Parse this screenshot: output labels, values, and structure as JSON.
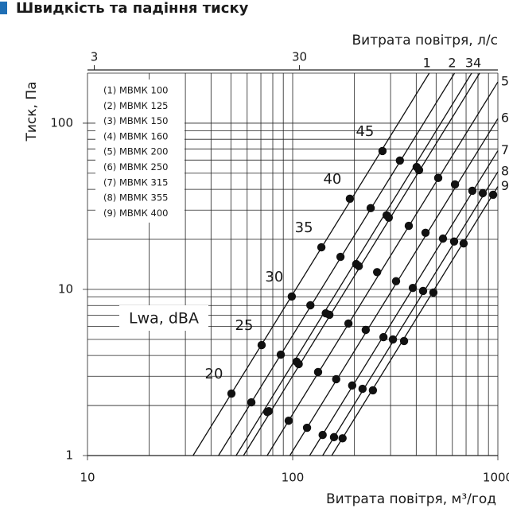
{
  "chart_data": {
    "type": "loglog-fan",
    "title": "Швидкість та падіння тиску",
    "x_label": "Витрата повітря, м³/год",
    "x2_label": "Витрата повітря, л/с",
    "y_label": "Тиск, Па",
    "annotation": "Lwa, dBA",
    "xlim": [
      10,
      1000
    ],
    "xticks": [
      10,
      100,
      1000
    ],
    "x_minor_ticks": [
      20,
      30,
      40,
      50,
      60,
      70,
      80,
      90,
      200,
      300,
      400,
      500,
      600,
      700,
      800,
      900
    ],
    "x2lim": [
      2.78,
      277.8
    ],
    "x2ticks": [
      3,
      30
    ],
    "ylim": [
      1,
      200
    ],
    "yticks": [
      1,
      10,
      100
    ],
    "y_minor_ticks": [
      2,
      3,
      4,
      5,
      6,
      7,
      8,
      9,
      20,
      30,
      40,
      50,
      60,
      70,
      80,
      90,
      200
    ],
    "log_scale": true,
    "grid": true,
    "dba_levels": [
      20,
      25,
      30,
      35,
      40,
      45
    ],
    "legend": [
      "(1) МВМК 100",
      "(2) МВМК 125",
      "(3) МВМК 150",
      "(4) МВМК 160",
      "(5) МВМК 200",
      "(6) МВМК 250",
      "(7) МВМК 315",
      "(8) МВМК 355",
      "(9) МВМК 400"
    ],
    "series": [
      {
        "name": "1",
        "color": "#111111",
        "line_x": [
          32.7,
          463
        ],
        "line_y": [
          1,
          200
        ],
        "x": [
          50.3,
          70.6,
          99,
          138,
          190,
          274
        ],
        "values": [
          2.36,
          4.62,
          9.06,
          17.9,
          35.1,
          68
        ]
      },
      {
        "name": "2",
        "color": "#111111",
        "line_x": [
          43.5,
          615
        ],
        "line_y": [
          1,
          200
        ],
        "x": [
          62.9,
          87.5,
          122,
          171,
          240,
          333
        ],
        "values": [
          2.09,
          4.05,
          8.02,
          15.7,
          30.8,
          59.6
        ]
      },
      {
        "name": "3",
        "color": "#111111",
        "line_x": [
          53,
          745
        ],
        "line_y": [
          1,
          200
        ],
        "x": [
          75.2,
          104.5,
          145,
          204,
          287,
          402
        ],
        "values": [
          1.83,
          3.67,
          7.18,
          14.2,
          27.9,
          54.5
        ]
      },
      {
        "name": "4",
        "color": "#111111",
        "line_x": [
          57.6,
          815
        ],
        "line_y": [
          1,
          200
        ],
        "x": [
          76.5,
          107,
          151,
          210,
          294,
          413
        ],
        "values": [
          1.85,
          3.55,
          7.03,
          13.8,
          27.0,
          52.2
        ]
      },
      {
        "name": "5",
        "color": "#111111",
        "line_x": [
          75.1,
          1000
        ],
        "line_y": [
          1,
          177
        ],
        "x": [
          95.6,
          133,
          187,
          258,
          368,
          512
        ],
        "values": [
          1.62,
          3.18,
          6.23,
          12.7,
          24.1,
          46.8
        ]
      },
      {
        "name": "6",
        "color": "#111111",
        "line_x": [
          96.9,
          1000
        ],
        "line_y": [
          1,
          106.5
        ],
        "x": [
          117.5,
          163,
          227,
          319,
          444,
          618
        ],
        "values": [
          1.47,
          2.88,
          5.7,
          11.2,
          21.9,
          42.8
        ]
      },
      {
        "name": "7",
        "color": "#111111",
        "line_x": [
          121,
          1000
        ],
        "line_y": [
          1,
          68.3
        ],
        "x": [
          140,
          195,
          277,
          385,
          540,
          751
        ],
        "values": [
          1.33,
          2.64,
          5.16,
          10.2,
          20.2,
          39.2
        ]
      },
      {
        "name": "8",
        "color": "#111111",
        "line_x": [
          140,
          1000
        ],
        "line_y": [
          1,
          51
        ],
        "x": [
          159,
          219,
          308,
          432,
          612,
          844
        ],
        "values": [
          1.29,
          2.52,
          5.0,
          9.78,
          19.4,
          37.9
        ]
      },
      {
        "name": "9",
        "color": "#111111",
        "line_x": [
          155,
          1000
        ],
        "line_y": [
          1,
          41.6
        ],
        "x": [
          175,
          246,
          349,
          485,
          681,
          948
        ],
        "values": [
          1.27,
          2.47,
          4.89,
          9.57,
          18.9,
          37.1
        ]
      }
    ]
  }
}
